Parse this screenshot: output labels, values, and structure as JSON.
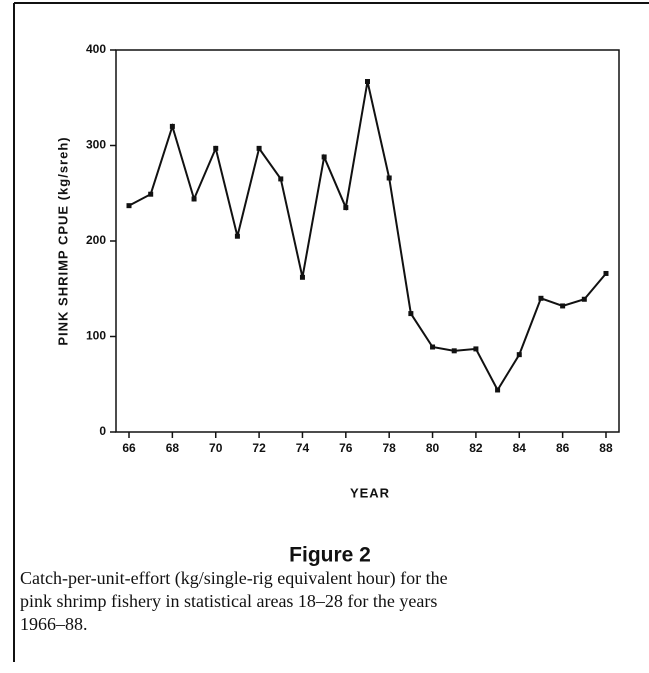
{
  "chart_data": {
    "type": "line",
    "x": [
      66,
      67,
      68,
      69,
      70,
      71,
      72,
      73,
      74,
      75,
      76,
      77,
      78,
      79,
      80,
      81,
      82,
      83,
      84,
      85,
      86,
      87,
      88
    ],
    "values": [
      237,
      249,
      320,
      244,
      297,
      205,
      297,
      265,
      162,
      288,
      235,
      367,
      266,
      124,
      89,
      85,
      87,
      44,
      81,
      140,
      132,
      139,
      166
    ],
    "color": "#111111",
    "xlim": [
      65.4,
      88.6
    ],
    "xticks": [
      66,
      68,
      70,
      72,
      74,
      76,
      78,
      80,
      82,
      84,
      86,
      88
    ],
    "ylim": [
      0,
      400
    ],
    "yticks": [
      0,
      100,
      200,
      300,
      400
    ],
    "xlabel": "YEAR",
    "ylabel": "PINK SHRIMP CPUE (kg/sreh)",
    "figure_label": "Figure 2",
    "caption": [
      "Catch-per-unit-effort (kg/single-rig equivalent hour) for the",
      "pink shrimp fishery in statistical areas 18–28 for the years",
      "1966–88."
    ]
  }
}
